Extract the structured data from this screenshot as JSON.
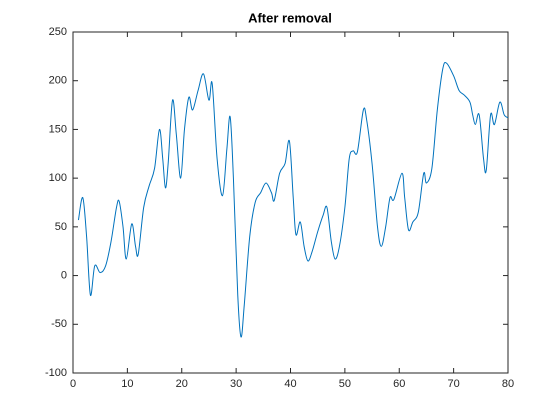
{
  "chart_data": {
    "type": "line",
    "title": "After removal",
    "x": [
      1,
      1.8,
      2.5,
      3.2,
      4,
      5,
      6,
      7,
      8,
      8.5,
      9.2,
      9.8,
      10.8,
      11.5,
      12,
      13,
      14,
      15,
      15.9,
      16.5,
      17,
      17.5,
      18.3,
      19,
      19.8,
      20.5,
      21.3,
      22,
      23,
      24,
      25,
      25.6,
      26.5,
      27.5,
      28.3,
      28.9,
      29.5,
      30.3,
      30.9,
      31.5,
      32.5,
      33.5,
      34.5,
      35.5,
      36.5,
      37,
      38,
      39,
      39.8,
      40.5,
      41,
      41.8,
      42.5,
      43.2,
      44,
      45,
      46,
      46.7,
      47.5,
      48.2,
      49,
      50,
      50.8,
      51.5,
      52.3,
      53.4,
      54,
      55,
      56,
      56.7,
      57.5,
      58.3,
      59,
      60.5,
      61,
      61.7,
      62.5,
      63.5,
      64.5,
      65,
      66,
      67,
      68,
      68.7,
      70,
      71,
      72,
      73,
      73.5,
      74,
      74.7,
      75.5,
      76,
      76.8,
      77.5,
      78.5,
      79.3,
      80
    ],
    "series": [
      {
        "color": "#0072bd",
        "values": [
          57,
          80,
          40,
          -20,
          10,
          3,
          10,
          35,
          70,
          76,
          50,
          17,
          53,
          30,
          22,
          70,
          92,
          110,
          150,
          120,
          90,
          115,
          180,
          145,
          100,
          150,
          183,
          170,
          190,
          207,
          180,
          197,
          120,
          82,
          130,
          163,
          100,
          -20,
          -63,
          -30,
          40,
          75,
          85,
          95,
          85,
          77,
          105,
          115,
          138,
          80,
          42,
          55,
          30,
          15,
          25,
          45,
          62,
          70,
          35,
          17,
          30,
          70,
          120,
          128,
          127,
          170,
          160,
          115,
          50,
          30,
          50,
          80,
          78,
          105,
          80,
          47,
          55,
          65,
          105,
          95,
          110,
          170,
          212,
          218,
          205,
          190,
          185,
          178,
          165,
          155,
          165,
          120,
          108,
          165,
          155,
          178,
          165,
          162
        ]
      }
    ],
    "xlim": [
      0,
      80
    ],
    "xticks": [
      0,
      10,
      20,
      30,
      40,
      50,
      60,
      70,
      80
    ],
    "ylim": [
      -100,
      250
    ],
    "yticks": [
      -100,
      -50,
      0,
      50,
      100,
      150,
      200,
      250
    ]
  }
}
